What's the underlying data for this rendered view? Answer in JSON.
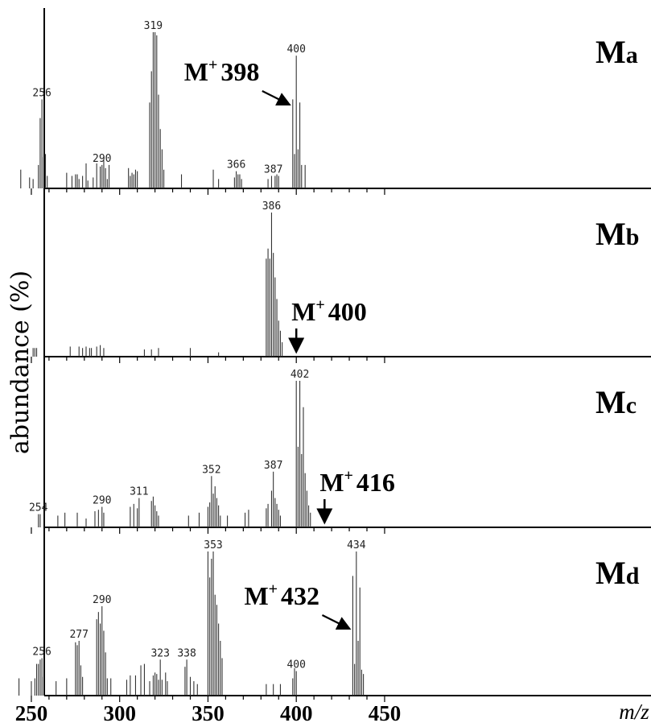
{
  "chart_data": {
    "type": "bar",
    "subtype": "stacked mass spectra",
    "ylabel": "abundance (%)",
    "xlabel": "m/z",
    "xlim": [
      240,
      455
    ],
    "x_ticks": [
      250,
      300,
      350,
      400,
      450
    ],
    "panels": [
      {
        "label_main": "M",
        "label_sub": "a",
        "molecular_ion": {
          "prefix": "M",
          "sup": "+",
          "value": "398",
          "x": 398,
          "arrow": "diagonal"
        },
        "peak_labels": [
          {
            "x": 256,
            "text": "256"
          },
          {
            "x": 290,
            "text": "290"
          },
          {
            "x": 319,
            "text": "319"
          },
          {
            "x": 366,
            "text": "366"
          },
          {
            "x": 387,
            "text": "387"
          },
          {
            "x": 400,
            "text": "400"
          }
        ],
        "peaks": [
          [
            244,
            12
          ],
          [
            249,
            7
          ],
          [
            251,
            6
          ],
          [
            254,
            15
          ],
          [
            255,
            45
          ],
          [
            256,
            57
          ],
          [
            257,
            20
          ],
          [
            258,
            22
          ],
          [
            259,
            8
          ],
          [
            270,
            10
          ],
          [
            273,
            8
          ],
          [
            275,
            9
          ],
          [
            276,
            9
          ],
          [
            277,
            6
          ],
          [
            279,
            8
          ],
          [
            281,
            16
          ],
          [
            282,
            5
          ],
          [
            285,
            7
          ],
          [
            287,
            16
          ],
          [
            289,
            14
          ],
          [
            290,
            15
          ],
          [
            291,
            18
          ],
          [
            292,
            13
          ],
          [
            293,
            6
          ],
          [
            294,
            15
          ],
          [
            305,
            13
          ],
          [
            306,
            8
          ],
          [
            307,
            10
          ],
          [
            308,
            9
          ],
          [
            309,
            12
          ],
          [
            310,
            11
          ],
          [
            317,
            55
          ],
          [
            318,
            75
          ],
          [
            319,
            100
          ],
          [
            320,
            100
          ],
          [
            321,
            98
          ],
          [
            322,
            60
          ],
          [
            323,
            38
          ],
          [
            324,
            25
          ],
          [
            325,
            12
          ],
          [
            335,
            9
          ],
          [
            353,
            12
          ],
          [
            356,
            6
          ],
          [
            365,
            7
          ],
          [
            366,
            11
          ],
          [
            367,
            9
          ],
          [
            368,
            9
          ],
          [
            369,
            6
          ],
          [
            384,
            6
          ],
          [
            386,
            8
          ],
          [
            388,
            8
          ],
          [
            389,
            9
          ],
          [
            390,
            8
          ],
          [
            398,
            57
          ],
          [
            399,
            22
          ],
          [
            400,
            85
          ],
          [
            401,
            25
          ],
          [
            402,
            55
          ],
          [
            403,
            15
          ],
          [
            405,
            15
          ]
        ]
      },
      {
        "label_main": "M",
        "label_sub": "b",
        "molecular_ion": {
          "prefix": "M",
          "sup": "+",
          "value": "400",
          "x": 400,
          "arrow": "down"
        },
        "peak_labels": [
          {
            "x": 386,
            "text": "386"
          }
        ],
        "peaks": [
          [
            251,
            6
          ],
          [
            252,
            6
          ],
          [
            253,
            6
          ],
          [
            272,
            7
          ],
          [
            277,
            7
          ],
          [
            279,
            6
          ],
          [
            281,
            7
          ],
          [
            283,
            6
          ],
          [
            284,
            6
          ],
          [
            287,
            7
          ],
          [
            289,
            8
          ],
          [
            291,
            6
          ],
          [
            314,
            5
          ],
          [
            318,
            5
          ],
          [
            322,
            6
          ],
          [
            340,
            6
          ],
          [
            356,
            3
          ],
          [
            383,
            68
          ],
          [
            384,
            75
          ],
          [
            385,
            68
          ],
          [
            386,
            100
          ],
          [
            387,
            72
          ],
          [
            388,
            55
          ],
          [
            389,
            40
          ],
          [
            390,
            25
          ],
          [
            391,
            18
          ],
          [
            392,
            10
          ]
        ]
      },
      {
        "label_main": "M",
        "label_sub": "c",
        "molecular_ion": {
          "prefix": "M",
          "sup": "+",
          "value": "416",
          "x": 416,
          "arrow": "down"
        },
        "peak_labels": [
          {
            "x": 254,
            "text": "254"
          },
          {
            "x": 290,
            "text": "290"
          },
          {
            "x": 311,
            "text": "311"
          },
          {
            "x": 352,
            "text": "352"
          },
          {
            "x": 387,
            "text": "387"
          },
          {
            "x": 402,
            "text": "402"
          }
        ],
        "peaks": [
          [
            254,
            9
          ],
          [
            255,
            9
          ],
          [
            265,
            8
          ],
          [
            269,
            10
          ],
          [
            276,
            10
          ],
          [
            281,
            6
          ],
          [
            286,
            11
          ],
          [
            288,
            12
          ],
          [
            290,
            14
          ],
          [
            291,
            10
          ],
          [
            306,
            14
          ],
          [
            308,
            16
          ],
          [
            310,
            13
          ],
          [
            311,
            20
          ],
          [
            318,
            18
          ],
          [
            319,
            21
          ],
          [
            320,
            15
          ],
          [
            321,
            11
          ],
          [
            322,
            8
          ],
          [
            339,
            8
          ],
          [
            345,
            10
          ],
          [
            350,
            14
          ],
          [
            351,
            17
          ],
          [
            352,
            35
          ],
          [
            353,
            23
          ],
          [
            354,
            28
          ],
          [
            355,
            20
          ],
          [
            356,
            15
          ],
          [
            357,
            8
          ],
          [
            361,
            8
          ],
          [
            371,
            10
          ],
          [
            373,
            12
          ],
          [
            383,
            13
          ],
          [
            384,
            16
          ],
          [
            386,
            25
          ],
          [
            387,
            38
          ],
          [
            388,
            20
          ],
          [
            389,
            16
          ],
          [
            390,
            12
          ],
          [
            391,
            8
          ],
          [
            400,
            100
          ],
          [
            401,
            55
          ],
          [
            402,
            100
          ],
          [
            403,
            50
          ],
          [
            404,
            82
          ],
          [
            405,
            37
          ],
          [
            406,
            25
          ],
          [
            407,
            15
          ],
          [
            408,
            10
          ]
        ]
      },
      {
        "label_main": "M",
        "label_sub": "d",
        "molecular_ion": {
          "prefix": "M",
          "sup": "+",
          "value": "432",
          "x": 432,
          "arrow": "diagonal"
        },
        "peak_labels": [
          {
            "x": 256,
            "text": "256"
          },
          {
            "x": 277,
            "text": "277"
          },
          {
            "x": 290,
            "text": "290"
          },
          {
            "x": 323,
            "text": "323"
          },
          {
            "x": 338,
            "text": "338"
          },
          {
            "x": 353,
            "text": "353"
          },
          {
            "x": 400,
            "text": "400"
          },
          {
            "x": 434,
            "text": "434"
          }
        ],
        "peaks": [
          [
            243,
            12
          ],
          [
            250,
            10
          ],
          [
            252,
            12
          ],
          [
            253,
            22
          ],
          [
            254,
            22
          ],
          [
            255,
            25
          ],
          [
            256,
            26
          ],
          [
            257,
            13
          ],
          [
            264,
            10
          ],
          [
            270,
            12
          ],
          [
            275,
            37
          ],
          [
            276,
            35
          ],
          [
            277,
            38
          ],
          [
            278,
            21
          ],
          [
            279,
            13
          ],
          [
            287,
            53
          ],
          [
            288,
            58
          ],
          [
            289,
            50
          ],
          [
            290,
            62
          ],
          [
            291,
            45
          ],
          [
            292,
            30
          ],
          [
            293,
            12
          ],
          [
            295,
            12
          ],
          [
            304,
            11
          ],
          [
            306,
            14
          ],
          [
            309,
            14
          ],
          [
            312,
            21
          ],
          [
            314,
            22
          ],
          [
            317,
            10
          ],
          [
            319,
            14
          ],
          [
            320,
            16
          ],
          [
            321,
            15
          ],
          [
            322,
            11
          ],
          [
            323,
            25
          ],
          [
            324,
            11
          ],
          [
            326,
            16
          ],
          [
            327,
            10
          ],
          [
            337,
            20
          ],
          [
            338,
            25
          ],
          [
            340,
            13
          ],
          [
            342,
            10
          ],
          [
            344,
            8
          ],
          [
            350,
            100
          ],
          [
            351,
            82
          ],
          [
            352,
            95
          ],
          [
            353,
            100
          ],
          [
            354,
            70
          ],
          [
            355,
            63
          ],
          [
            356,
            50
          ],
          [
            357,
            38
          ],
          [
            358,
            26
          ],
          [
            383,
            8
          ],
          [
            387,
            8
          ],
          [
            391,
            8
          ],
          [
            398,
            12
          ],
          [
            399,
            19
          ],
          [
            400,
            17
          ],
          [
            432,
            83
          ],
          [
            433,
            22
          ],
          [
            434,
            100
          ],
          [
            435,
            38
          ],
          [
            436,
            75
          ],
          [
            437,
            18
          ],
          [
            438,
            15
          ]
        ]
      }
    ]
  }
}
